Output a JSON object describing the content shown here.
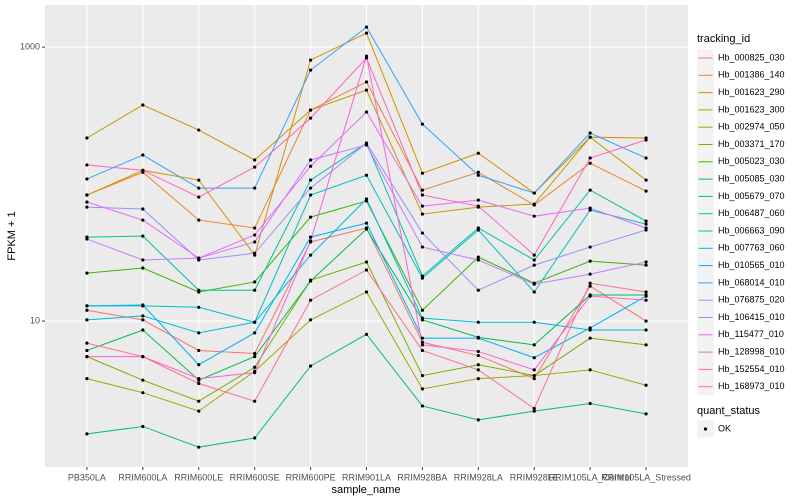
{
  "chart_data": {
    "type": "line",
    "x_label": "sample_name",
    "y_label": "FPKM + 1",
    "categories": [
      "PB350LA",
      "RRIM600LA",
      "RRIM600LE",
      "RRIM600SE",
      "RRIM600PE",
      "RRIM901LA",
      "RRIM928BA",
      "RRIM928LA",
      "RRIM928LE",
      "RRIM105LA_Control",
      "RRIM105LA_Stressed"
    ],
    "y_log": true,
    "ylim": [
      0.86,
      2030
    ],
    "yticks": [
      10,
      1000
    ],
    "grid": true,
    "legend_title": "tracking_id",
    "legend_position": "right",
    "status_legend_title": "quant_status",
    "status_labels": [
      "OK"
    ],
    "point_color": "#000000",
    "series": [
      {
        "name": "Hb_000825_030",
        "color": "#F8766D",
        "values": [
          12.0,
          10.2,
          6.1,
          5.8,
          37.8,
          47.8,
          7.0,
          5.6,
          3.8,
          18.0,
          10
        ]
      },
      {
        "name": "Hb_001386_140",
        "color": "#EA8331",
        "values": [
          83.2,
          122,
          54.6,
          47.8,
          347,
          556,
          90.4,
          122,
          70.3,
          142,
          88.9
        ]
      },
      {
        "name": "Hb_001623_290",
        "color": "#D89000",
        "values": [
          83.2,
          126,
          107,
          30.3,
          804,
          1265,
          120,
          168,
          86.0,
          220,
          217
        ]
      },
      {
        "name": "Hb_001623_300",
        "color": "#C09B00",
        "values": [
          217,
          378,
          248,
          150,
          347,
          485,
          60.4,
          67.9,
          71.5,
          220,
          107
        ]
      },
      {
        "name": "Hb_002974_050",
        "color": "#A3A500",
        "values": [
          3.8,
          3.0,
          2.2,
          4.3,
          10.2,
          16.3,
          3.2,
          3.8,
          4.0,
          4.4,
          3.4
        ]
      },
      {
        "name": "Hb_003371_170",
        "color": "#7CAE00",
        "values": [
          5.5,
          3.7,
          2.6,
          4.6,
          19.9,
          27.0,
          4.0,
          4.8,
          4.0,
          7.5,
          6.7
        ]
      },
      {
        "name": "Hb_005023_030",
        "color": "#39B600",
        "values": [
          22.4,
          24.4,
          16.3,
          19.3,
          57.4,
          75.2,
          12.0,
          29.3,
          18.9,
          27.4,
          25.6
        ]
      },
      {
        "name": "Hb_005085_030",
        "color": "#00BB4E",
        "values": [
          6.1,
          8.6,
          3.7,
          5.5,
          19.6,
          47.0,
          10.2,
          7.6,
          6.7,
          15.5,
          15.5
        ]
      },
      {
        "name": "Hb_005679_070",
        "color": "#00BF7D",
        "values": [
          1.5,
          1.7,
          1.2,
          1.4,
          4.7,
          8.0,
          2.4,
          1.9,
          2.2,
          2.5,
          2.1
        ]
      },
      {
        "name": "Hb_006487_060",
        "color": "#00C1A3",
        "values": [
          41.0,
          41.7,
          16.8,
          16.8,
          107,
          199,
          21.3,
          47.8,
          27.9,
          90.4,
          53.7
        ]
      },
      {
        "name": "Hb_006663_090",
        "color": "#00BFC4",
        "values": [
          12.9,
          12.9,
          12.6,
          9.8,
          83.2,
          116,
          20.6,
          46.2,
          16.3,
          64.6,
          51.0
        ]
      },
      {
        "name": "Hb_007763_060",
        "color": "#00BAE0",
        "values": [
          10.2,
          10.9,
          8.2,
          9.8,
          30.3,
          77.8,
          10.5,
          9.8,
          9.8,
          8.6,
          8.6
        ]
      },
      {
        "name": "Hb_010565_010",
        "color": "#00B0F6",
        "values": [
          12.9,
          13.1,
          4.8,
          8.2,
          41.0,
          51.9,
          7.5,
          7.5,
          5.4,
          8.9,
          15.2
        ]
      },
      {
        "name": "Hb_068014_010",
        "color": "#35A2FF",
        "values": [
          109,
          163,
          93.5,
          93.5,
          679,
          1400,
          274,
          116,
          86.0,
          236,
          155
        ]
      },
      {
        "name": "Hb_076875_020",
        "color": "#9590FF",
        "values": [
          67.9,
          65.8,
          27.9,
          31.3,
          93.5,
          199,
          43.9,
          16.8,
          25.6,
          34.7,
          46.2
        ]
      },
      {
        "name": "Hb_106415_010",
        "color": "#C77CFF",
        "values": [
          39.7,
          27.9,
          28.8,
          37.8,
          150,
          193,
          34.7,
          27.9,
          18.6,
          22.0,
          27.0
        ]
      },
      {
        "name": "Hb_115477_010",
        "color": "#E76BF3",
        "values": [
          73.9,
          54.6,
          28.8,
          42.5,
          135,
          336,
          69.0,
          76.4,
          58.3,
          66.8,
          47.8
        ]
      },
      {
        "name": "Hb_128998_010",
        "color": "#FA62DB",
        "values": [
          5.5,
          5.5,
          3.8,
          4.2,
          38.4,
          859,
          6.7,
          6.0,
          4.4,
          15.2,
          14.2
        ]
      },
      {
        "name": "Hb_152554_010",
        "color": "#FF62BC",
        "values": [
          138,
          126,
          80.4,
          133,
          303,
          832,
          83.2,
          69.0,
          30.3,
          155,
          210
        ]
      },
      {
        "name": "Hb_168973_010",
        "color": "#FF6C91",
        "values": [
          6.9,
          5.5,
          3.5,
          2.6,
          14.2,
          23.6,
          6.1,
          4.4,
          2.3,
          18.9,
          16.3
        ]
      }
    ]
  }
}
